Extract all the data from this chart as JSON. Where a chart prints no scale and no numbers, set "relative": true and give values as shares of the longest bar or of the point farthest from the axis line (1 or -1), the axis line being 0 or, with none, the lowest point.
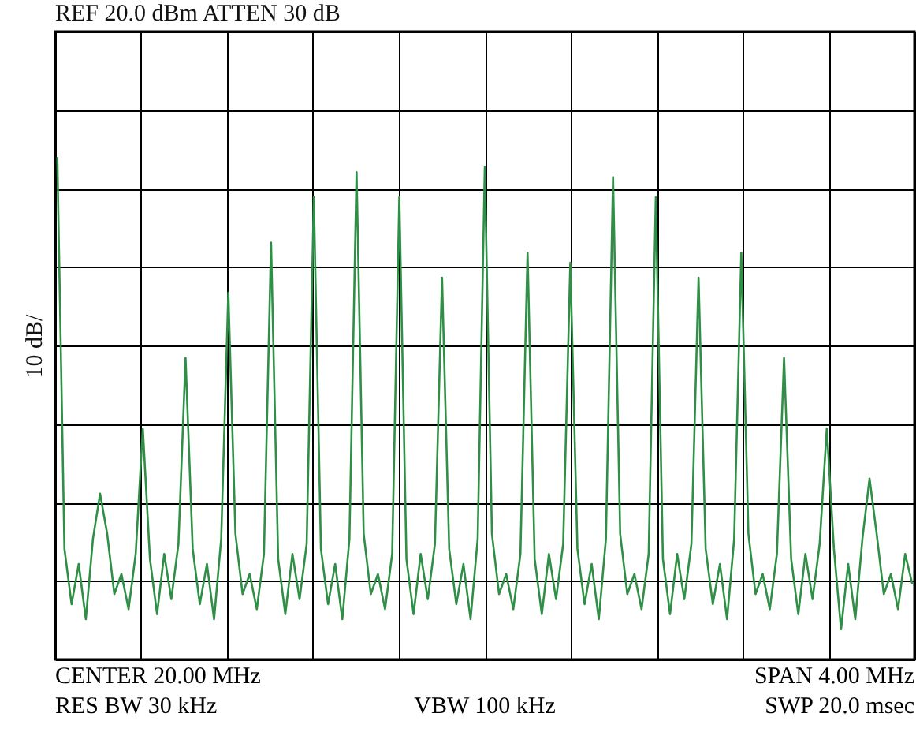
{
  "chart_data": {
    "type": "line",
    "title": "REF 20.0 dBm ATTEN 30 dB",
    "ylabel": "10 dB/",
    "annotations": [
      "CENTER 20.00 MHz",
      "RES BW 30 kHz",
      "VBW 100 kHz",
      "SPAN 4.00 MHz",
      "SWP 20.0 msec"
    ],
    "relative": true,
    "grid": true,
    "color": "#2f8f46",
    "categories": [
      null,
      null,
      null,
      null,
      null,
      null,
      null,
      null,
      null,
      null,
      null,
      null,
      null,
      null,
      null,
      null,
      null,
      null,
      null,
      null,
      null,
      null,
      null,
      null,
      null,
      null,
      null,
      null,
      null,
      null,
      null,
      null,
      null,
      null,
      null,
      null,
      null,
      null,
      null,
      null,
      null,
      null,
      null,
      null,
      null,
      null,
      null,
      null,
      null,
      null,
      null,
      null,
      null,
      null,
      null,
      null,
      null,
      null,
      null,
      null,
      null,
      null,
      null,
      null,
      null,
      null,
      null,
      null,
      null,
      null,
      null,
      null,
      null,
      null,
      null,
      null,
      null,
      null,
      null,
      null,
      null,
      null,
      null,
      null,
      null,
      null,
      null,
      null,
      null,
      null,
      null,
      null,
      null,
      null,
      null,
      null,
      null,
      null,
      null,
      null,
      null,
      null,
      null,
      null,
      null,
      null,
      null,
      null,
      null,
      null,
      null,
      null,
      null,
      null,
      null,
      null,
      null,
      null,
      null,
      null,
      null
    ],
    "values": [
      1.0,
      0.22,
      0.11,
      0.19,
      0.08,
      0.24,
      0.33,
      0.25,
      0.13,
      0.17,
      0.1,
      0.21,
      0.46,
      0.2,
      0.09,
      0.21,
      0.12,
      0.23,
      0.6,
      0.22,
      0.11,
      0.19,
      0.08,
      0.24,
      0.73,
      0.25,
      0.13,
      0.17,
      0.1,
      0.21,
      0.83,
      0.2,
      0.09,
      0.21,
      0.12,
      0.23,
      0.92,
      0.22,
      0.11,
      0.19,
      0.08,
      0.24,
      0.97,
      0.25,
      0.13,
      0.17,
      0.1,
      0.21,
      0.92,
      0.2,
      0.09,
      0.21,
      0.12,
      0.23,
      0.76,
      0.22,
      0.11,
      0.19,
      0.08,
      0.24,
      0.98,
      0.25,
      0.13,
      0.17,
      0.1,
      0.21,
      0.81,
      0.2,
      0.09,
      0.21,
      0.12,
      0.23,
      0.79,
      0.22,
      0.11,
      0.19,
      0.08,
      0.24,
      0.96,
      0.25,
      0.13,
      0.17,
      0.1,
      0.21,
      0.92,
      0.2,
      0.09,
      0.21,
      0.12,
      0.23,
      0.76,
      0.22,
      0.11,
      0.19,
      0.08,
      0.24,
      0.81,
      0.25,
      0.13,
      0.17,
      0.1,
      0.21,
      0.6,
      0.2,
      0.09,
      0.21,
      0.12,
      0.23,
      0.46,
      0.22,
      0.06,
      0.19,
      0.08,
      0.24,
      0.36,
      0.25,
      0.13,
      0.17,
      0.1,
      0.21,
      0.15
    ]
  }
}
